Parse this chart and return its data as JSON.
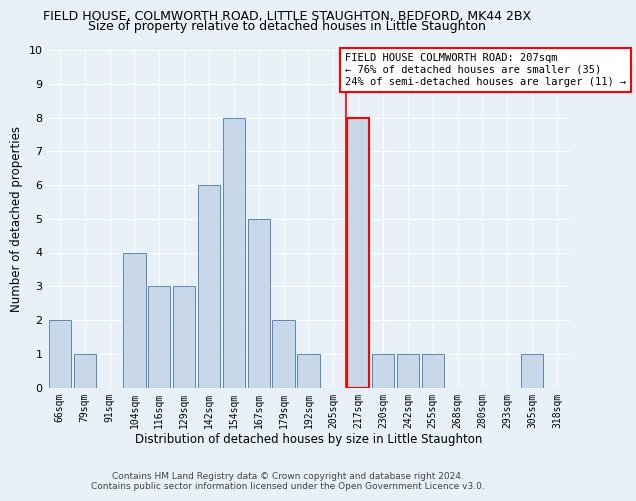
{
  "title": "FIELD HOUSE, COLMWORTH ROAD, LITTLE STAUGHTON, BEDFORD, MK44 2BX",
  "subtitle": "Size of property relative to detached houses in Little Staughton",
  "xlabel": "Distribution of detached houses by size in Little Staughton",
  "ylabel": "Number of detached properties",
  "categories": [
    "66sqm",
    "79sqm",
    "91sqm",
    "104sqm",
    "116sqm",
    "129sqm",
    "142sqm",
    "154sqm",
    "167sqm",
    "179sqm",
    "192sqm",
    "205sqm",
    "217sqm",
    "230sqm",
    "242sqm",
    "255sqm",
    "268sqm",
    "280sqm",
    "293sqm",
    "305sqm",
    "318sqm"
  ],
  "values": [
    2,
    1,
    0,
    4,
    3,
    3,
    6,
    8,
    5,
    2,
    1,
    0,
    8,
    1,
    1,
    1,
    0,
    0,
    0,
    1,
    0
  ],
  "bar_color": "#c8d8e8",
  "bar_edge_color": "#5588bb",
  "highlight_index": 12,
  "highlight_edge_color": "red",
  "vline_color": "red",
  "ylim": [
    0,
    10
  ],
  "yticks": [
    0,
    1,
    2,
    3,
    4,
    5,
    6,
    7,
    8,
    9,
    10
  ],
  "annotation_text": "FIELD HOUSE COLMWORTH ROAD: 207sqm\n← 76% of detached houses are smaller (35)\n24% of semi-detached houses are larger (11) →",
  "annotation_box_color": "white",
  "annotation_box_edge_color": "red",
  "footer_line1": "Contains HM Land Registry data © Crown copyright and database right 2024.",
  "footer_line2": "Contains public sector information licensed under the Open Government Licence v3.0.",
  "background_color": "#e8f0f8",
  "grid_color": "#ffffff",
  "title_fontsize": 9,
  "subtitle_fontsize": 9,
  "axis_label_fontsize": 8.5
}
